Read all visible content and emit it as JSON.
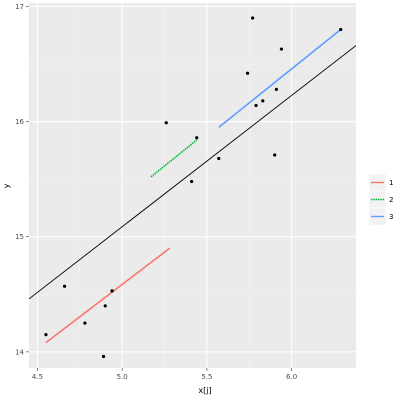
{
  "chart_data": {
    "type": "scatter",
    "xlabel": "x[j]",
    "ylabel": "y",
    "xlim": [
      4.45,
      6.38
    ],
    "ylim": [
      13.86,
      17.03
    ],
    "x_ticks": [
      "4.5",
      "5.0",
      "5.5",
      "6.0"
    ],
    "x_tick_values": [
      4.5,
      5.0,
      5.5,
      6.0
    ],
    "y_ticks": [
      "14",
      "15",
      "16",
      "17"
    ],
    "y_tick_values": [
      14,
      15,
      16,
      17
    ],
    "grid": true,
    "legend_position": "right",
    "points": [
      {
        "x": 4.55,
        "y": 14.15
      },
      {
        "x": 4.66,
        "y": 14.57
      },
      {
        "x": 4.78,
        "y": 14.25
      },
      {
        "x": 4.89,
        "y": 13.96
      },
      {
        "x": 4.9,
        "y": 14.4
      },
      {
        "x": 4.94,
        "y": 14.53
      },
      {
        "x": 5.26,
        "y": 15.99
      },
      {
        "x": 5.41,
        "y": 15.48
      },
      {
        "x": 5.44,
        "y": 15.86
      },
      {
        "x": 5.57,
        "y": 15.68
      },
      {
        "x": 5.74,
        "y": 16.42
      },
      {
        "x": 5.77,
        "y": 16.9
      },
      {
        "x": 5.79,
        "y": 16.14
      },
      {
        "x": 5.83,
        "y": 16.18
      },
      {
        "x": 5.9,
        "y": 15.71
      },
      {
        "x": 5.91,
        "y": 16.28
      },
      {
        "x": 5.94,
        "y": 16.63
      },
      {
        "x": 6.29,
        "y": 16.8
      }
    ],
    "overall_fit": {
      "color": "#000000",
      "x": [
        4.45,
        6.38
      ],
      "y": [
        14.46,
        16.66
      ]
    },
    "series": [
      {
        "name": "1",
        "color": "#F8766D",
        "x": [
          4.55,
          5.28
        ],
        "y": [
          14.08,
          14.9
        ],
        "dashed": false
      },
      {
        "name": "2",
        "color": "#00BA38",
        "x": [
          5.17,
          5.44
        ],
        "y": [
          15.52,
          15.84
        ],
        "dashed": true
      },
      {
        "name": "3",
        "color": "#619CFF",
        "x": [
          5.57,
          6.29
        ],
        "y": [
          15.95,
          16.8
        ],
        "dashed": false
      }
    ],
    "legend": {
      "title": "",
      "entries": [
        "1",
        "2",
        "3"
      ]
    }
  }
}
